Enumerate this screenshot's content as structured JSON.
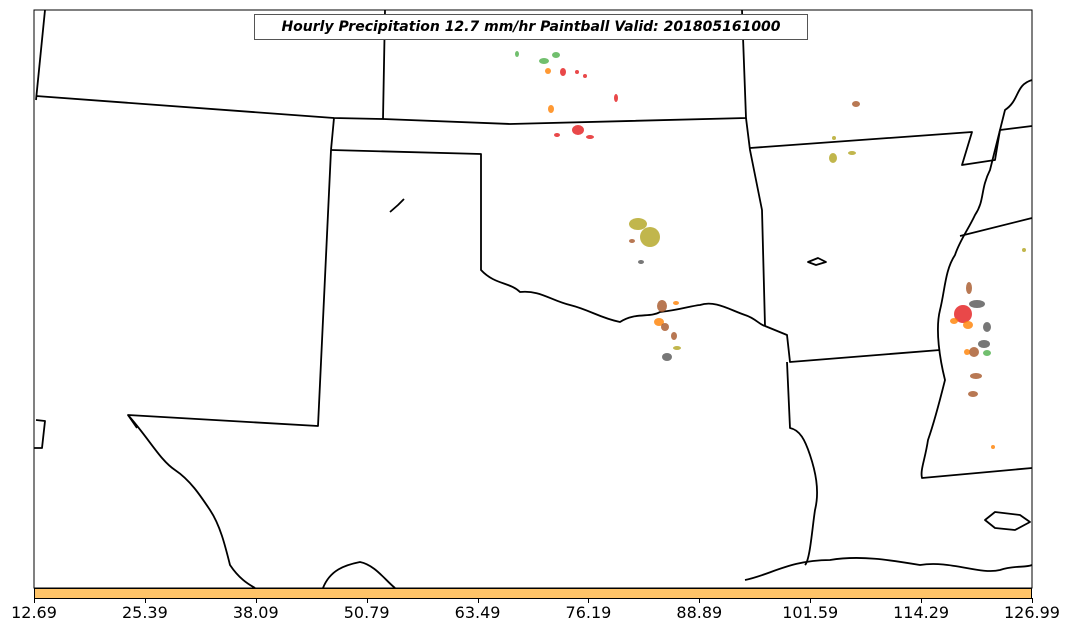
{
  "title": "Hourly Precipitation 12.7 mm/hr Paintball Valid: 201805161000",
  "colorbar": {
    "color": "#FFC468",
    "ticks": [
      "12.69",
      "25.39",
      "38.09",
      "50.79",
      "63.49",
      "76.19",
      "88.89",
      "101.59",
      "114.29",
      "126.99"
    ]
  },
  "colors": {
    "border": "#000000",
    "member_colors": [
      "#e41a1c",
      "#4daf4a",
      "#ff7f00",
      "#b2a41f",
      "#a65628",
      "#555555",
      "#f781bf"
    ]
  }
}
